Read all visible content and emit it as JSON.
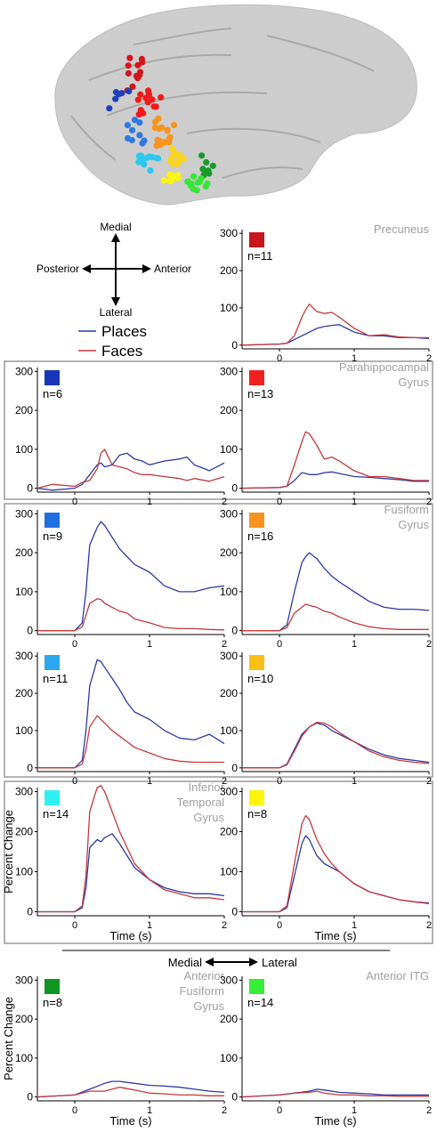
{
  "compass": {
    "medial": "Medial",
    "lateral": "Lateral",
    "posterior": "Posterior",
    "anterior": "Anterior"
  },
  "legend": {
    "places": "Places",
    "faces": "Faces"
  },
  "colors": {
    "places": "#2b3aa8",
    "faces": "#c8383a",
    "region_label": "#a0a0a0",
    "box": "#9a9a9a",
    "brain": "#c9c9c9"
  },
  "axis_common": {
    "x_ticks": [
      "0",
      "1",
      "2"
    ],
    "y_ticks": [
      "0",
      "100",
      "200",
      "300"
    ],
    "xlabel": "Time (s)",
    "ylabel": "Percent Change",
    "xlim": [
      -0.5,
      2
    ],
    "ylim": [
      -10,
      310
    ]
  },
  "divider_labels": {
    "medial": "Medial",
    "lateral": "Lateral"
  },
  "chart_data": [
    {
      "type": "line",
      "region": "Precuneus",
      "n_label": "n=11",
      "swatch": "#c8161d",
      "x": [
        -0.5,
        0,
        0.1,
        0.2,
        0.3,
        0.35,
        0.4,
        0.5,
        0.6,
        0.7,
        0.8,
        0.9,
        1,
        1.2,
        1.4,
        1.6,
        1.8,
        2
      ],
      "series": [
        {
          "name": "Places",
          "values": [
            0,
            3,
            5,
            15,
            25,
            30,
            35,
            45,
            50,
            53,
            55,
            45,
            35,
            25,
            25,
            20,
            20,
            18
          ]
        },
        {
          "name": "Faces",
          "values": [
            0,
            3,
            5,
            25,
            75,
            95,
            110,
            90,
            85,
            88,
            75,
            60,
            45,
            25,
            28,
            22,
            20,
            20
          ]
        }
      ]
    },
    {
      "type": "line",
      "region": "",
      "n_label": "n=6",
      "swatch": "#1537b8",
      "x": [
        -0.5,
        -0.3,
        0,
        0.1,
        0.2,
        0.3,
        0.35,
        0.4,
        0.5,
        0.6,
        0.7,
        0.8,
        0.9,
        1,
        1.2,
        1.4,
        1.5,
        1.6,
        1.8,
        2
      ],
      "series": [
        {
          "name": "Places",
          "values": [
            0,
            -5,
            0,
            10,
            35,
            60,
            65,
            55,
            60,
            85,
            90,
            75,
            70,
            60,
            70,
            75,
            80,
            60,
            45,
            65
          ]
        },
        {
          "name": "Faces",
          "values": [
            0,
            10,
            5,
            15,
            20,
            50,
            90,
            100,
            60,
            55,
            50,
            40,
            35,
            35,
            30,
            25,
            20,
            25,
            18,
            30
          ]
        }
      ]
    },
    {
      "type": "line",
      "region": "Parahippocampal Gyrus",
      "n_label": "n=13",
      "swatch": "#ef2020",
      "x": [
        -0.5,
        0,
        0.1,
        0.2,
        0.3,
        0.35,
        0.4,
        0.5,
        0.6,
        0.7,
        0.8,
        1,
        1.2,
        1.4,
        1.6,
        1.8,
        2
      ],
      "series": [
        {
          "name": "Places",
          "values": [
            0,
            2,
            5,
            20,
            40,
            38,
            35,
            35,
            40,
            42,
            38,
            30,
            28,
            25,
            22,
            18,
            18
          ]
        },
        {
          "name": "Faces",
          "values": [
            0,
            2,
            5,
            60,
            120,
            145,
            140,
            110,
            75,
            80,
            70,
            45,
            30,
            30,
            25,
            20,
            20
          ]
        }
      ]
    },
    {
      "type": "line",
      "region": "",
      "n_label": "n=9",
      "swatch": "#1f6fe0",
      "x": [
        -0.5,
        0,
        0.1,
        0.15,
        0.2,
        0.3,
        0.35,
        0.4,
        0.5,
        0.6,
        0.7,
        0.8,
        1,
        1.2,
        1.4,
        1.6,
        1.8,
        2
      ],
      "series": [
        {
          "name": "Places",
          "values": [
            0,
            0,
            20,
            100,
            220,
            265,
            280,
            270,
            240,
            210,
            190,
            170,
            150,
            115,
            100,
            100,
            110,
            115
          ]
        },
        {
          "name": "Faces",
          "values": [
            0,
            0,
            10,
            40,
            70,
            82,
            80,
            70,
            60,
            50,
            45,
            30,
            20,
            8,
            5,
            5,
            3,
            2
          ]
        }
      ]
    },
    {
      "type": "line",
      "region": "Fusiform Gyrus",
      "n_label": "n=16",
      "swatch": "#f7931e",
      "x": [
        -0.5,
        0,
        0.1,
        0.2,
        0.3,
        0.35,
        0.4,
        0.5,
        0.6,
        0.7,
        0.8,
        1,
        1.2,
        1.4,
        1.6,
        1.8,
        2
      ],
      "series": [
        {
          "name": "Places",
          "values": [
            0,
            0,
            15,
            100,
            175,
            190,
            200,
            185,
            160,
            140,
            125,
            100,
            75,
            60,
            55,
            55,
            52
          ]
        },
        {
          "name": "Faces",
          "values": [
            0,
            0,
            8,
            45,
            60,
            68,
            65,
            60,
            50,
            45,
            35,
            20,
            10,
            5,
            3,
            3,
            3
          ]
        }
      ]
    },
    {
      "type": "line",
      "region": "",
      "n_label": "n=11",
      "swatch": "#2ca7ee",
      "x": [
        -0.5,
        0,
        0.1,
        0.15,
        0.2,
        0.3,
        0.35,
        0.4,
        0.5,
        0.6,
        0.7,
        0.8,
        1,
        1.2,
        1.4,
        1.6,
        1.8,
        2
      ],
      "series": [
        {
          "name": "Places",
          "values": [
            0,
            0,
            20,
            100,
            220,
            290,
            285,
            270,
            240,
            210,
            175,
            150,
            130,
            100,
            80,
            75,
            90,
            65
          ]
        },
        {
          "name": "Faces",
          "values": [
            0,
            0,
            10,
            50,
            110,
            140,
            130,
            120,
            100,
            85,
            70,
            55,
            40,
            25,
            18,
            15,
            15,
            15
          ]
        }
      ]
    },
    {
      "type": "line",
      "region": "",
      "n_label": "n=10",
      "swatch": "#fbbf15",
      "x": [
        -0.5,
        0,
        0.1,
        0.2,
        0.3,
        0.4,
        0.5,
        0.6,
        0.7,
        0.8,
        1,
        1.2,
        1.4,
        1.6,
        1.8,
        2
      ],
      "series": [
        {
          "name": "Places",
          "values": [
            0,
            0,
            10,
            50,
            90,
            110,
            120,
            115,
            100,
            90,
            70,
            50,
            35,
            25,
            20,
            15
          ]
        },
        {
          "name": "Faces",
          "values": [
            0,
            0,
            8,
            45,
            85,
            110,
            122,
            120,
            110,
            95,
            70,
            45,
            30,
            20,
            15,
            12
          ]
        }
      ]
    },
    {
      "type": "line",
      "region": "Inferior Temporal Gyrus",
      "n_label": "n=14",
      "swatch": "#2ff0f2",
      "x": [
        -0.5,
        0,
        0.1,
        0.15,
        0.2,
        0.3,
        0.35,
        0.4,
        0.5,
        0.6,
        0.7,
        0.8,
        1,
        1.2,
        1.4,
        1.6,
        1.8,
        2
      ],
      "series": [
        {
          "name": "Places",
          "values": [
            0,
            0,
            10,
            60,
            160,
            180,
            175,
            185,
            195,
            170,
            140,
            110,
            80,
            60,
            50,
            45,
            45,
            40
          ]
        },
        {
          "name": "Faces",
          "values": [
            0,
            0,
            15,
            90,
            250,
            310,
            315,
            300,
            250,
            200,
            160,
            120,
            80,
            55,
            45,
            35,
            35,
            30
          ]
        }
      ]
    },
    {
      "type": "line",
      "region": "",
      "n_label": "n=8",
      "swatch": "#fdf50c",
      "x": [
        -0.5,
        0,
        0.1,
        0.2,
        0.3,
        0.35,
        0.4,
        0.5,
        0.6,
        0.7,
        0.8,
        1,
        1.2,
        1.4,
        1.6,
        1.8,
        2
      ],
      "series": [
        {
          "name": "Places",
          "values": [
            0,
            0,
            10,
            90,
            170,
            190,
            180,
            140,
            120,
            110,
            100,
            70,
            50,
            40,
            30,
            25,
            22
          ]
        },
        {
          "name": "Faces",
          "values": [
            0,
            0,
            15,
            120,
            220,
            240,
            230,
            180,
            145,
            120,
            100,
            70,
            50,
            40,
            30,
            25,
            20
          ]
        }
      ]
    },
    {
      "type": "line",
      "region": "Anterior Fusiform Gyrus",
      "n_label": "n=8",
      "swatch": "#129623",
      "x": [
        -0.5,
        0,
        0.2,
        0.4,
        0.5,
        0.6,
        0.8,
        1,
        1.2,
        1.4,
        1.6,
        1.8,
        2
      ],
      "series": [
        {
          "name": "Places",
          "values": [
            0,
            5,
            20,
            35,
            40,
            40,
            35,
            30,
            28,
            25,
            20,
            15,
            12
          ]
        },
        {
          "name": "Faces",
          "values": [
            0,
            5,
            15,
            15,
            20,
            25,
            18,
            10,
            8,
            5,
            5,
            3,
            3
          ]
        }
      ]
    },
    {
      "type": "line",
      "region": "Anterior ITG",
      "n_label": "n=14",
      "swatch": "#35ee35",
      "x": [
        -0.5,
        0,
        0.2,
        0.4,
        0.5,
        0.6,
        0.8,
        1,
        1.2,
        1.4,
        1.6,
        1.8,
        2
      ],
      "series": [
        {
          "name": "Places",
          "values": [
            0,
            5,
            10,
            15,
            20,
            18,
            12,
            10,
            8,
            5,
            5,
            5,
            5
          ]
        },
        {
          "name": "Faces",
          "values": [
            0,
            5,
            10,
            12,
            15,
            10,
            5,
            5,
            3,
            3,
            2,
            2,
            2
          ]
        }
      ]
    }
  ],
  "electrodes": [
    {
      "c": "#d41419"
    },
    {
      "c": "#1e40b8"
    },
    {
      "c": "#f01a1a"
    },
    {
      "c": "#2f78e2"
    },
    {
      "c": "#f7931e"
    },
    {
      "c": "#2ac7ee"
    },
    {
      "c": "#fdd51a"
    },
    {
      "c": "#fdf50c"
    },
    {
      "c": "#189a28"
    },
    {
      "c": "#38e438"
    }
  ]
}
